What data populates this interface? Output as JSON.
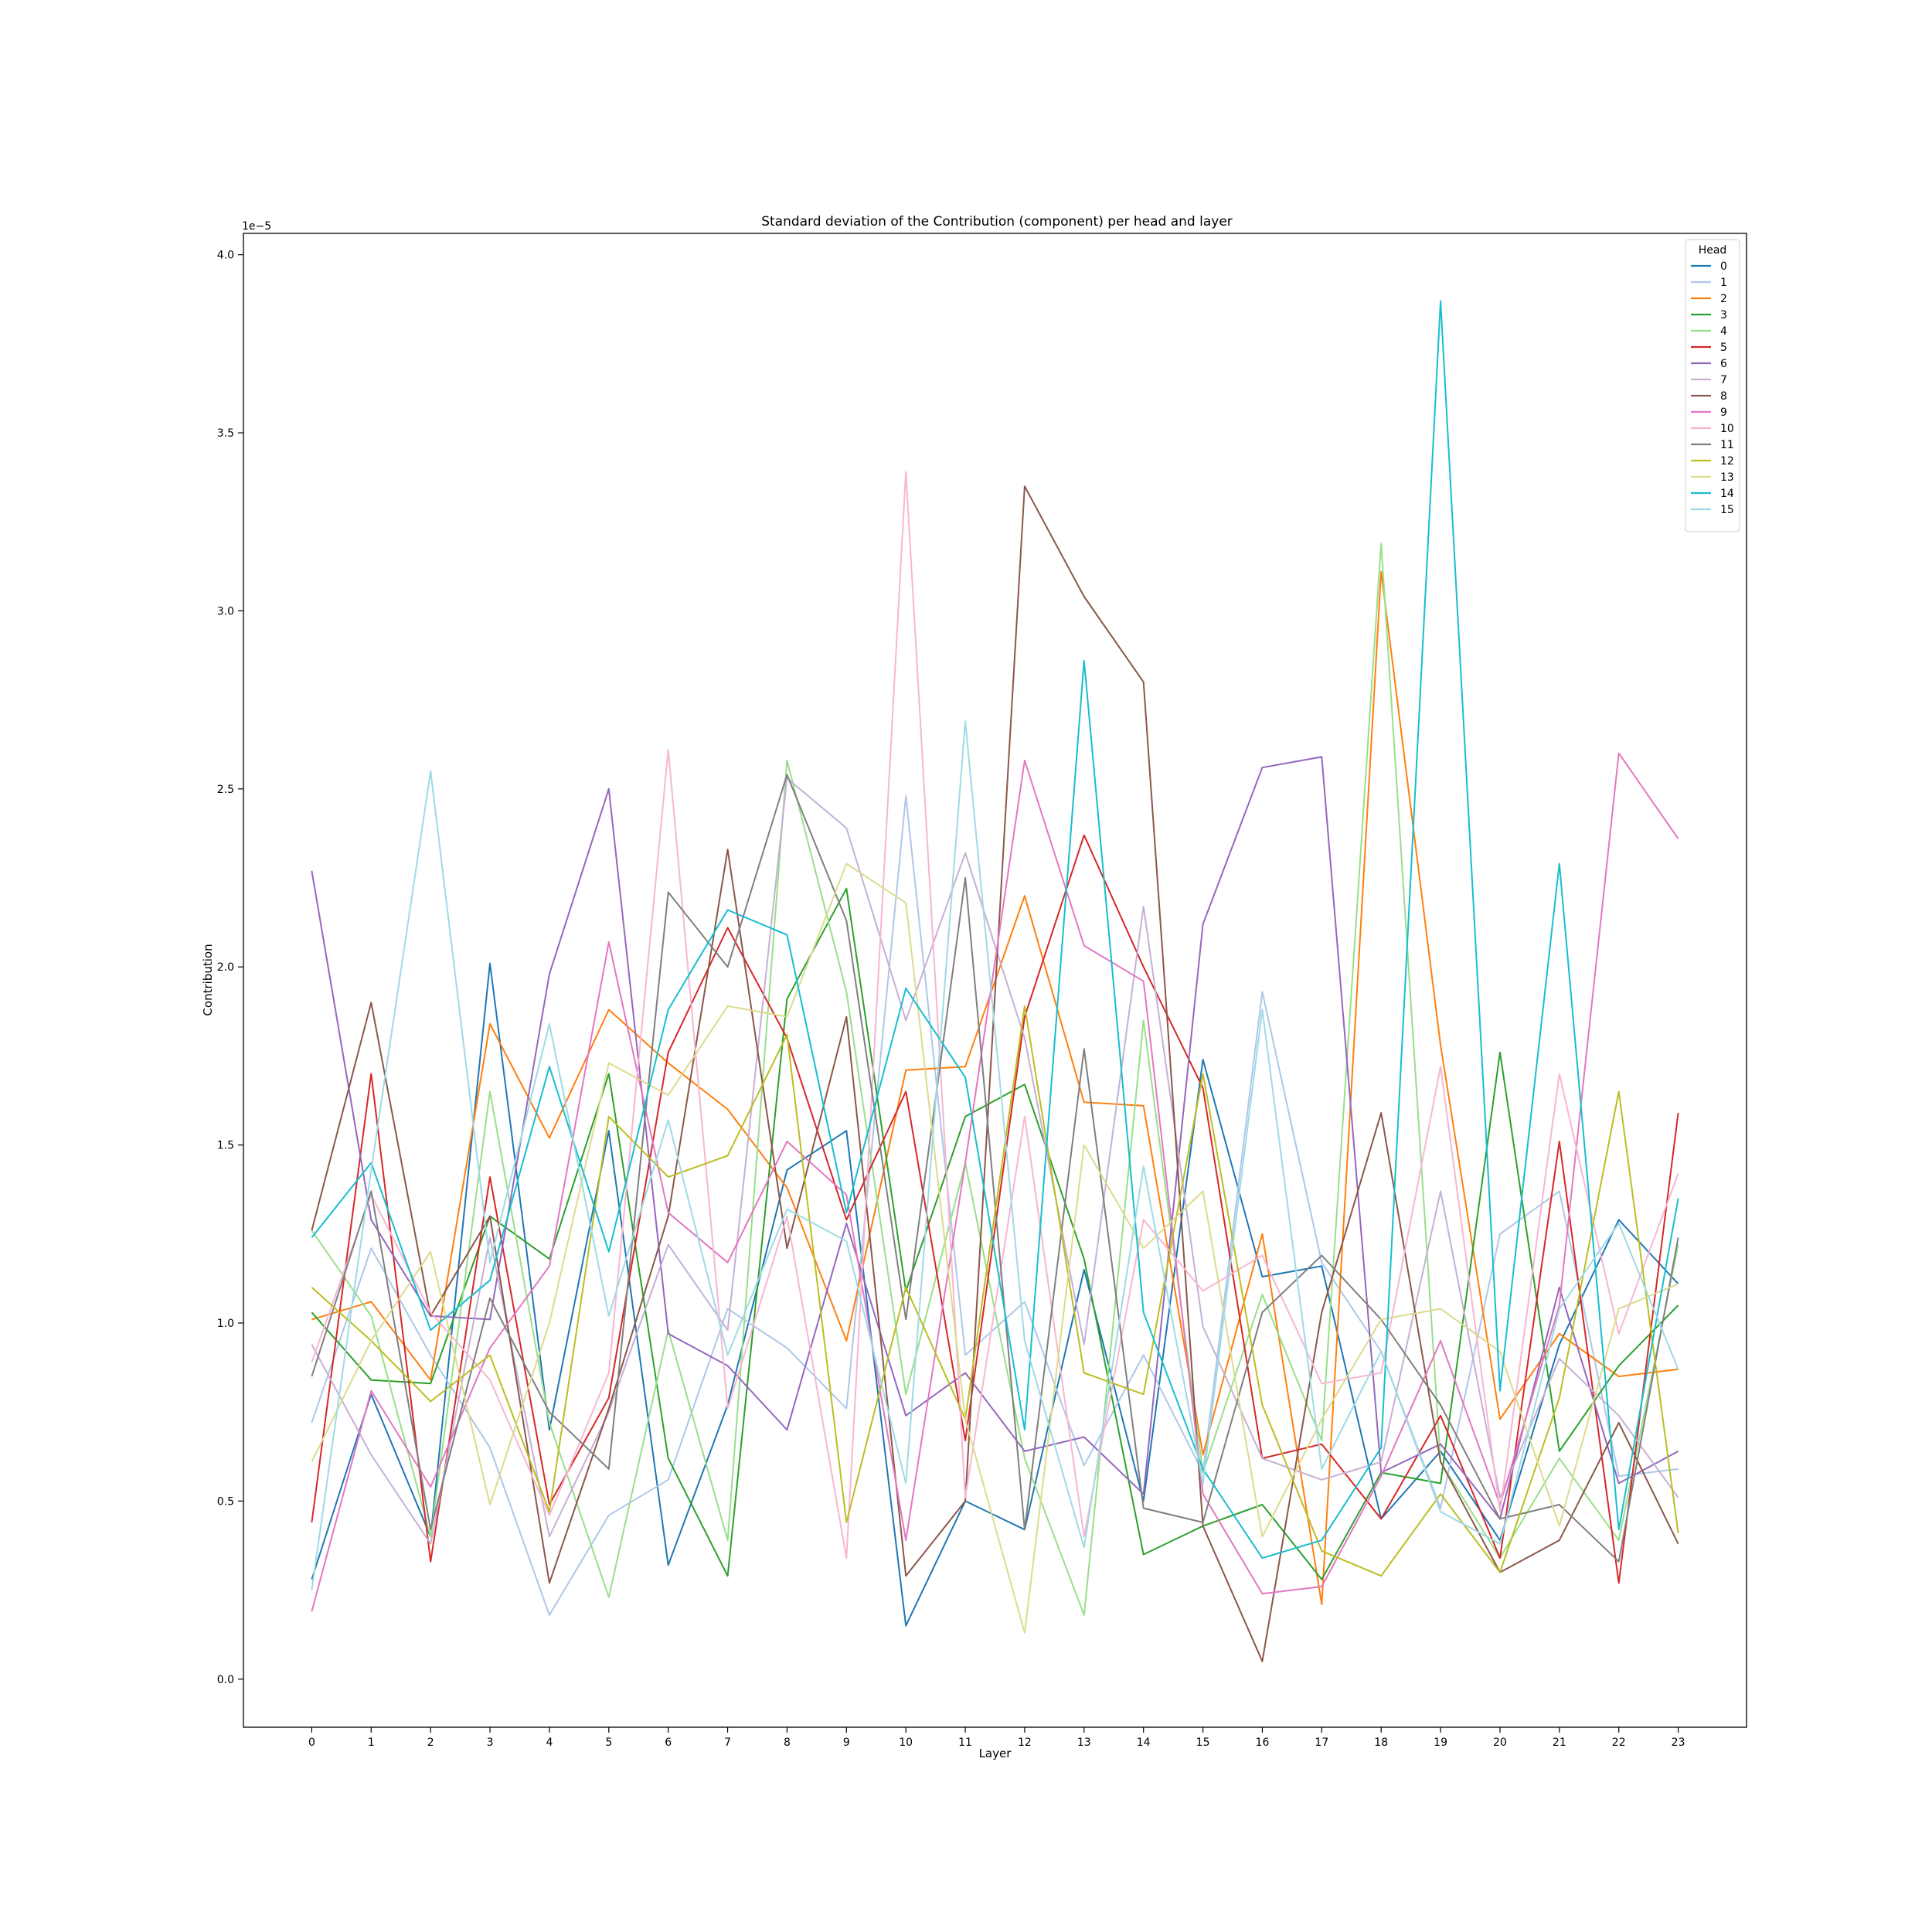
{
  "chart_data": {
    "type": "line",
    "title": "Standard deviation of the Contribution (component) per head and layer",
    "xlabel": "Layer",
    "ylabel": "Contribution",
    "offset_text": "1e−5",
    "x": [
      0,
      1,
      2,
      3,
      4,
      5,
      6,
      7,
      8,
      9,
      10,
      11,
      12,
      13,
      14,
      15,
      16,
      17,
      18,
      19,
      20,
      21,
      22,
      23
    ],
    "x_ticks": [
      "0",
      "1",
      "2",
      "3",
      "4",
      "5",
      "6",
      "7",
      "8",
      "9",
      "10",
      "11",
      "12",
      "13",
      "14",
      "15",
      "16",
      "17",
      "18",
      "19",
      "20",
      "21",
      "22",
      "23"
    ],
    "y_ticks": [
      "0.0",
      "0.5",
      "1.0",
      "1.5",
      "2.0",
      "2.5",
      "3.0",
      "3.5",
      "4.0"
    ],
    "y_tick_values": [
      0.0,
      0.5,
      1.0,
      1.5,
      2.0,
      2.5,
      3.0,
      3.5,
      4.0
    ],
    "xlim": [
      -1.15,
      24.15
    ],
    "ylim": [
      -0.135,
      4.06
    ],
    "grid": false,
    "legend": {
      "title": "Head",
      "position": "top-right"
    },
    "series": [
      {
        "name": "0",
        "color": "#1f77b4",
        "values": [
          0.28,
          0.8,
          0.4,
          2.01,
          0.7,
          1.54,
          0.32,
          0.77,
          1.43,
          1.54,
          0.15,
          0.5,
          0.42,
          1.15,
          0.5,
          1.74,
          1.13,
          1.16,
          0.45,
          0.64,
          0.39,
          0.94,
          1.29,
          1.11
        ]
      },
      {
        "name": "1",
        "color": "#aec7e8",
        "values": [
          0.72,
          1.21,
          0.91,
          0.65,
          0.18,
          0.46,
          0.56,
          1.04,
          0.93,
          0.76,
          2.48,
          0.91,
          1.06,
          0.6,
          0.91,
          0.58,
          1.93,
          1.17,
          0.92,
          0.48,
          1.25,
          1.37,
          0.57,
          0.59
        ]
      },
      {
        "name": "2",
        "color": "#ff7f0e",
        "values": [
          1.01,
          1.06,
          0.84,
          1.84,
          1.52,
          1.88,
          1.73,
          1.6,
          1.38,
          0.95,
          1.71,
          1.72,
          2.2,
          1.62,
          1.61,
          0.63,
          1.25,
          0.21,
          3.11,
          1.78,
          0.73,
          0.97,
          0.85,
          0.87
        ]
      },
      {
        "name": "3",
        "color": "#2ca02c",
        "values": [
          1.03,
          0.84,
          0.83,
          1.3,
          1.18,
          1.7,
          0.62,
          0.29,
          1.91,
          2.22,
          1.09,
          1.58,
          1.67,
          1.18,
          0.35,
          0.43,
          0.49,
          0.28,
          0.58,
          0.55,
          1.76,
          0.64,
          0.88,
          1.05
        ]
      },
      {
        "name": "4",
        "color": "#98df8a",
        "values": [
          1.26,
          1.02,
          0.4,
          1.65,
          0.72,
          0.23,
          0.98,
          0.39,
          2.58,
          1.93,
          0.8,
          1.45,
          0.62,
          0.18,
          1.85,
          0.58,
          1.08,
          0.67,
          3.19,
          0.61,
          0.34,
          0.62,
          0.39,
          1.22
        ]
      },
      {
        "name": "5",
        "color": "#d62728",
        "values": [
          0.44,
          1.7,
          0.33,
          1.41,
          0.49,
          0.79,
          1.76,
          2.11,
          1.8,
          1.29,
          1.65,
          0.67,
          1.86,
          2.37,
          2.0,
          1.66,
          0.62,
          0.66,
          0.45,
          0.74,
          0.34,
          1.51,
          0.27,
          1.59
        ]
      },
      {
        "name": "6",
        "color": "#9467bd",
        "values": [
          2.27,
          1.29,
          1.02,
          1.01,
          1.98,
          2.5,
          0.97,
          0.88,
          0.7,
          1.28,
          0.74,
          0.86,
          0.64,
          0.68,
          0.52,
          2.12,
          2.56,
          2.59,
          0.58,
          0.66,
          0.45,
          1.1,
          0.55,
          0.64
        ]
      },
      {
        "name": "7",
        "color": "#c5b0d5",
        "values": [
          0.94,
          0.63,
          0.38,
          1.24,
          0.4,
          0.75,
          1.22,
          0.98,
          2.53,
          2.39,
          1.85,
          2.32,
          1.8,
          0.94,
          2.17,
          0.99,
          0.62,
          0.56,
          0.61,
          1.37,
          0.51,
          0.9,
          0.74,
          0.51
        ]
      },
      {
        "name": "8",
        "color": "#8c564b",
        "values": [
          1.26,
          1.9,
          1.02,
          1.3,
          0.27,
          0.76,
          1.3,
          2.33,
          1.21,
          1.86,
          0.29,
          0.5,
          3.35,
          3.04,
          2.8,
          0.43,
          0.05,
          1.03,
          1.59,
          0.61,
          0.3,
          0.39,
          0.72,
          0.38
        ]
      },
      {
        "name": "9",
        "color": "#e377c2",
        "values": [
          0.19,
          0.81,
          0.54,
          0.93,
          1.16,
          2.07,
          1.31,
          1.17,
          1.51,
          1.36,
          0.39,
          1.45,
          2.58,
          2.06,
          1.96,
          0.52,
          0.24,
          0.26,
          0.57,
          0.95,
          0.49,
          1.05,
          2.6,
          2.36
        ]
      },
      {
        "name": "10",
        "color": "#f7b6d2",
        "values": [
          0.89,
          1.36,
          1.03,
          0.84,
          0.46,
          0.86,
          2.61,
          0.76,
          1.3,
          0.34,
          3.39,
          0.51,
          1.58,
          0.4,
          1.29,
          1.09,
          1.19,
          0.83,
          0.86,
          1.72,
          0.47,
          1.7,
          0.97,
          1.42
        ]
      },
      {
        "name": "11",
        "color": "#7f7f7f",
        "values": [
          0.85,
          1.37,
          0.42,
          1.07,
          0.75,
          0.59,
          2.21,
          2.0,
          2.54,
          2.13,
          1.01,
          2.25,
          0.42,
          1.77,
          0.48,
          0.44,
          1.03,
          1.19,
          1.01,
          0.77,
          0.45,
          0.49,
          0.33,
          1.24
        ]
      },
      {
        "name": "12",
        "color": "#bcbd22",
        "values": [
          1.1,
          0.95,
          0.78,
          0.91,
          0.47,
          1.58,
          1.41,
          1.47,
          1.81,
          0.44,
          1.1,
          0.73,
          1.89,
          0.86,
          0.8,
          1.7,
          0.77,
          0.36,
          0.29,
          0.52,
          0.3,
          0.79,
          1.65,
          0.41
        ]
      },
      {
        "name": "13",
        "color": "#dbdb8d",
        "values": [
          0.61,
          0.95,
          1.2,
          0.49,
          1.0,
          1.73,
          1.64,
          1.89,
          1.86,
          2.29,
          2.18,
          0.73,
          0.13,
          1.5,
          1.21,
          1.37,
          0.4,
          0.73,
          1.01,
          1.04,
          0.92,
          0.43,
          1.04,
          1.11
        ]
      },
      {
        "name": "14",
        "color": "#17becf",
        "values": [
          1.24,
          1.45,
          0.98,
          1.12,
          1.72,
          1.2,
          1.88,
          2.16,
          2.09,
          1.31,
          1.94,
          1.69,
          0.7,
          2.86,
          1.03,
          0.59,
          0.34,
          0.39,
          0.65,
          3.87,
          0.81,
          2.29,
          0.42,
          1.35
        ]
      },
      {
        "name": "15",
        "color": "#9edae5",
        "values": [
          0.25,
          1.43,
          2.55,
          1.17,
          1.84,
          1.02,
          1.57,
          0.91,
          1.32,
          1.23,
          0.55,
          2.69,
          0.95,
          0.37,
          1.44,
          0.55,
          1.88,
          0.59,
          0.92,
          0.47,
          0.38,
          1.04,
          1.28,
          0.87
        ]
      }
    ]
  }
}
